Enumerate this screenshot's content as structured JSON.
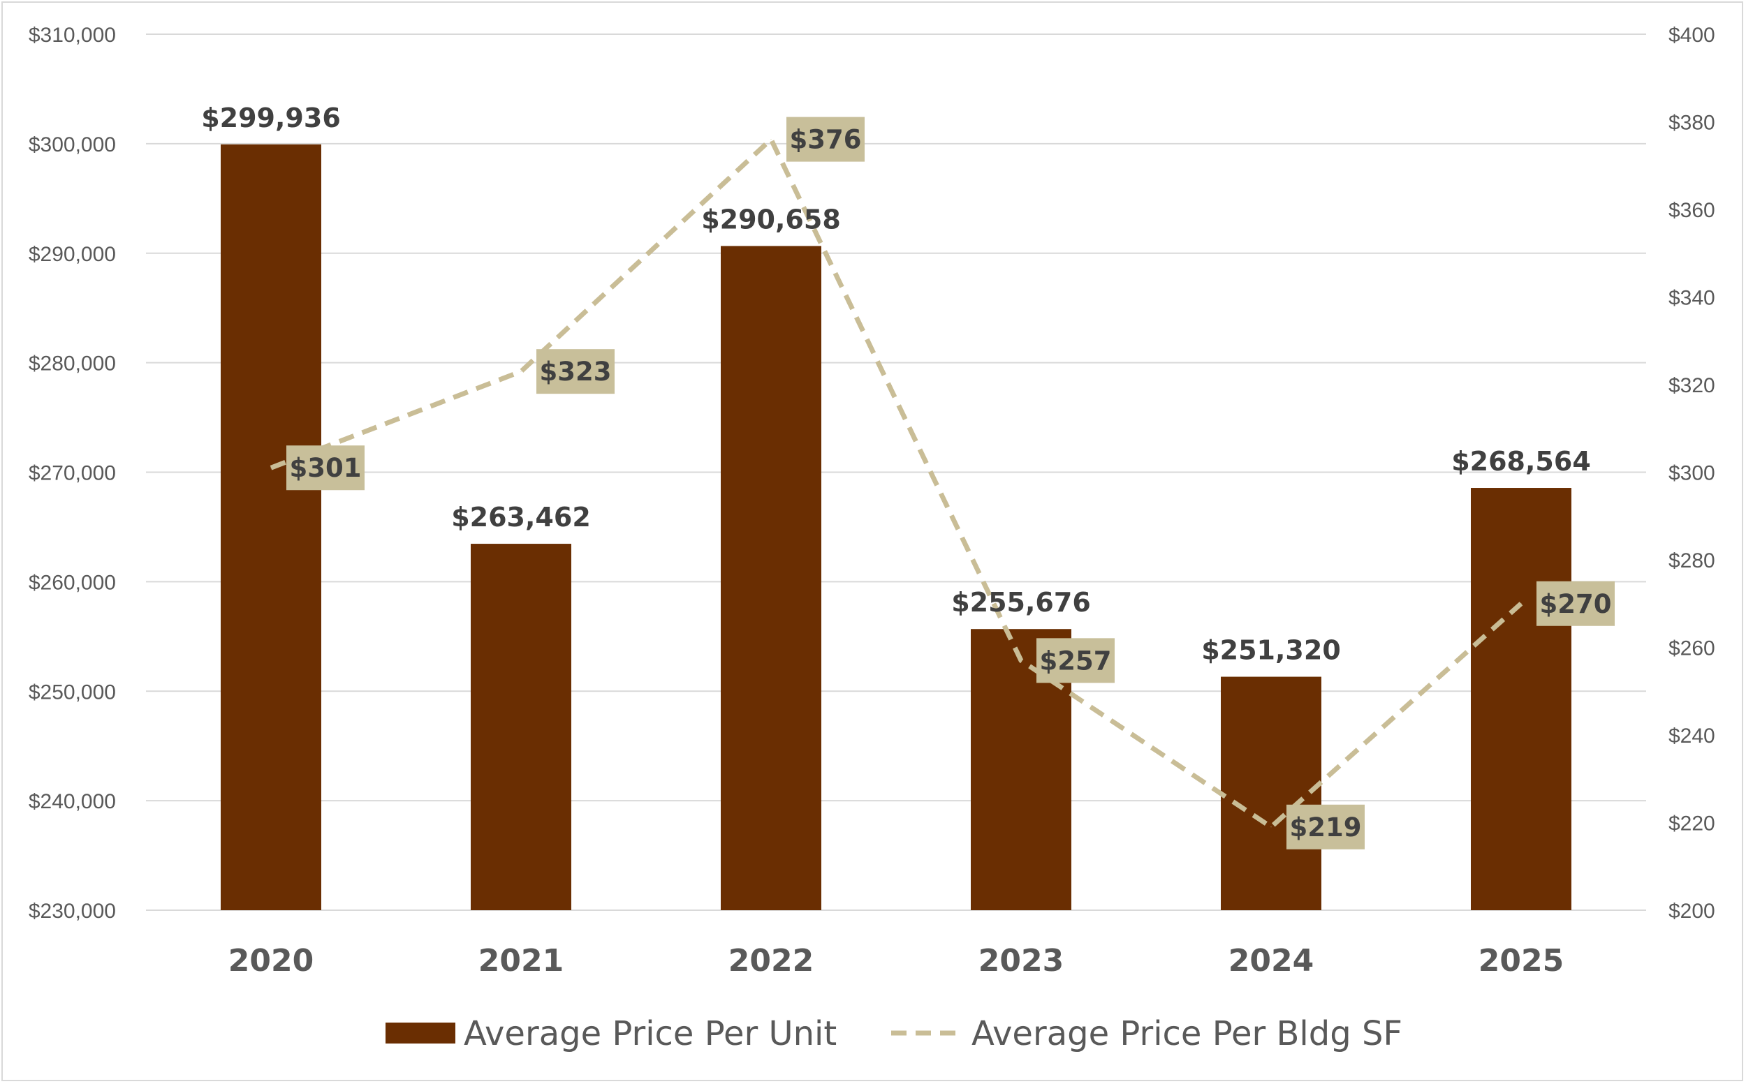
{
  "colors": {
    "bar": "#6a2e02",
    "line": "#c9bd96",
    "label_box": "#c8bf9a",
    "grid": "#d9d9d9",
    "axis_text": "#595959",
    "label_text": "#404040"
  },
  "chart_data": {
    "type": "bar",
    "categories": [
      "2020",
      "2021",
      "2022",
      "2023",
      "2024",
      "2025"
    ],
    "series": [
      {
        "name": "Average Price Per Unit",
        "type": "bar",
        "axis": "left",
        "values": [
          299936,
          263462,
          290658,
          255676,
          251320,
          268564
        ],
        "labels": [
          "$299,936",
          "$263,462",
          "$290,658",
          "$255,676",
          "$251,320",
          "$268,564"
        ]
      },
      {
        "name": "Average Price Per Bldg SF",
        "type": "line",
        "style": "dashed",
        "axis": "right",
        "values": [
          301,
          323,
          376,
          257,
          219,
          270
        ],
        "labels": [
          "$301",
          "$323",
          "$376",
          "$257",
          "$219",
          "$270"
        ]
      }
    ],
    "y_left": {
      "ylim": [
        230000,
        310000
      ],
      "ticks": [
        "$230,000",
        "$240,000",
        "$250,000",
        "$260,000",
        "$270,000",
        "$280,000",
        "$290,000",
        "$300,000",
        "$310,000"
      ]
    },
    "y_right": {
      "ylim": [
        200,
        400
      ],
      "ticks": [
        "$200",
        "$220",
        "$240",
        "$260",
        "$280",
        "$300",
        "$320",
        "$340",
        "$360",
        "$380",
        "$400"
      ]
    },
    "grid": true,
    "legend_position": "bottom"
  }
}
